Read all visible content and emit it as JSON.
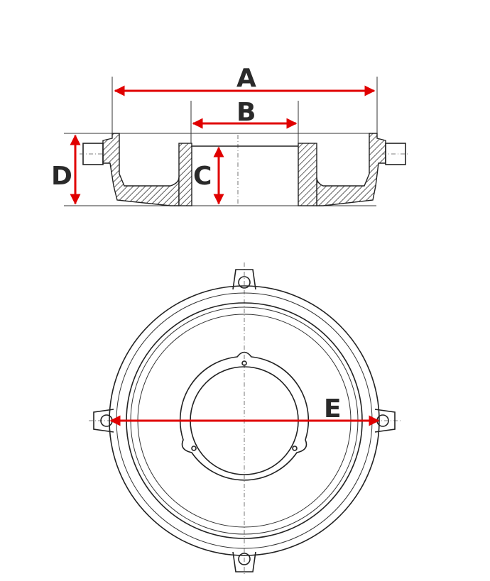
{
  "labels": {
    "a": "A",
    "b": "B",
    "c": "C",
    "d": "D",
    "e": "E"
  },
  "colors": {
    "dimension": "#e00000",
    "drawing": "#222222",
    "background": "#ffffff"
  }
}
